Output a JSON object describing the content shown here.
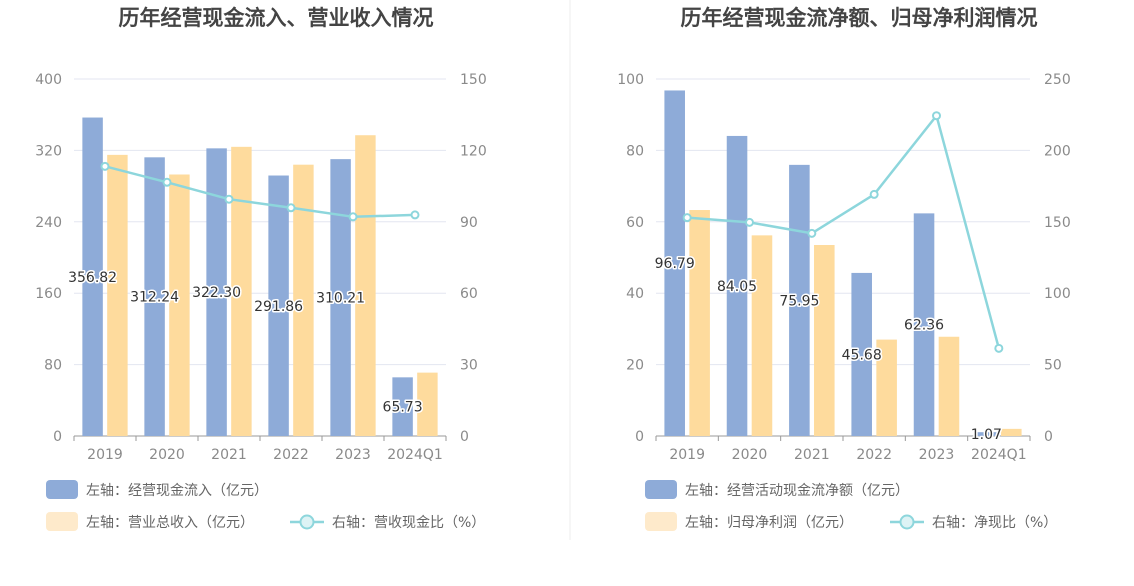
{
  "colors": {
    "bar_primary": "#8eabd8",
    "bar_secondary": "#fedb9d",
    "line": "#8dd6dc",
    "legend_secondary_swatch": "#feeacb",
    "legend_line_marker_fill": "#ddf3f5",
    "grid": "#e3e6f0",
    "axis": "#999999",
    "title": "#444444",
    "divider": "#eeeeee"
  },
  "chart_data": [
    {
      "id": "left",
      "type": "bar",
      "title": "历年经营现金流入、营业收入情况",
      "categories": [
        "2019",
        "2020",
        "2021",
        "2022",
        "2023",
        "2024Q1"
      ],
      "left_axis": {
        "ylim": [
          0,
          400
        ],
        "ticks": [
          "0",
          "80",
          "160",
          "240",
          "320",
          "400"
        ]
      },
      "right_axis": {
        "ylim": [
          0,
          150
        ],
        "ticks": [
          "0",
          "30",
          "60",
          "90",
          "120",
          "150"
        ]
      },
      "grid": true,
      "legend_position": "bottom",
      "series": [
        {
          "name": "左轴：经营现金流入（亿元）",
          "type": "bar",
          "axis": "left",
          "values": [
            356.82,
            312.24,
            322.3,
            291.86,
            310.21,
            65.73
          ],
          "labels": [
            "356.82",
            "312.24",
            "322.30",
            "291.86",
            "310.21",
            "65.73"
          ]
        },
        {
          "name": "左轴：营业总收入（亿元）",
          "type": "bar",
          "axis": "left",
          "values": [
            315,
            293,
            324,
            304,
            337,
            71
          ]
        },
        {
          "name": "右轴：营收现金比（%）",
          "type": "line",
          "axis": "right",
          "values": [
            113.3,
            106.6,
            99.5,
            95.9,
            92.1,
            92.9
          ]
        }
      ]
    },
    {
      "id": "right",
      "type": "bar",
      "title": "历年经营现金流净额、归母净利润情况",
      "categories": [
        "2019",
        "2020",
        "2021",
        "2022",
        "2023",
        "2024Q1"
      ],
      "left_axis": {
        "ylim": [
          0,
          100
        ],
        "ticks": [
          "0",
          "20",
          "40",
          "60",
          "80",
          "100"
        ]
      },
      "right_axis": {
        "ylim": [
          0,
          250
        ],
        "ticks": [
          "0",
          "50",
          "100",
          "150",
          "200",
          "250"
        ]
      },
      "grid": true,
      "legend_position": "bottom",
      "series": [
        {
          "name": "左轴：经营活动现金流净额（亿元）",
          "type": "bar",
          "axis": "left",
          "values": [
            96.79,
            84.05,
            75.95,
            45.68,
            62.36,
            1.07
          ],
          "labels": [
            "96.79",
            "84.05",
            "75.95",
            "45.68",
            "62.36",
            "1.07"
          ]
        },
        {
          "name": "左轴：归母净利润（亿元）",
          "type": "bar",
          "axis": "left",
          "values": [
            63.3,
            56.2,
            53.5,
            27.0,
            27.8,
            2.0
          ]
        },
        {
          "name": "右轴：净现比（%）",
          "type": "line",
          "axis": "right",
          "values": [
            152.9,
            149.6,
            141.9,
            169.2,
            224.3,
            61.4
          ]
        }
      ]
    }
  ]
}
